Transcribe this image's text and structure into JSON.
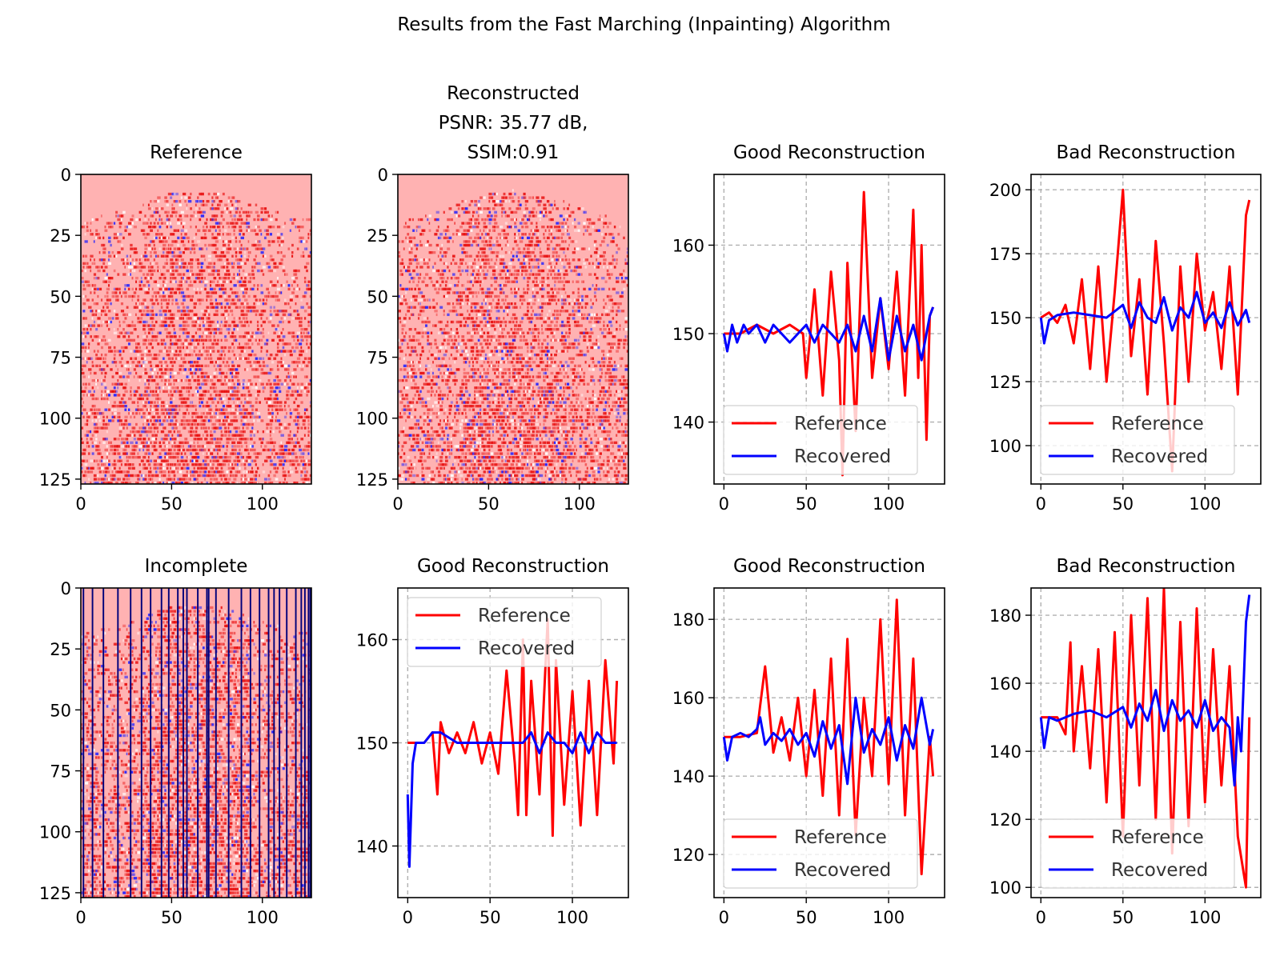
{
  "title": "Results from the Fast Marching (Inpainting) Algorithm",
  "colors": {
    "reference": "#ff0000",
    "recovered": "#0000ff",
    "image_base": "#ffb2b2",
    "mask_line": "#00007a"
  },
  "chart_data": [
    {
      "id": "p1",
      "type": "heatmap",
      "title": "Reference",
      "xlim": [
        0,
        127
      ],
      "ylim": [
        127,
        0
      ],
      "xticks": [
        0,
        50,
        100
      ],
      "yticks": [
        0,
        25,
        50,
        75,
        100,
        125
      ]
    },
    {
      "id": "p2",
      "type": "heatmap",
      "title": "Reconstructed\nPSNR: 35.77 dB,\nSSIM:0.91",
      "xlim": [
        0,
        127
      ],
      "ylim": [
        127,
        0
      ],
      "xticks": [
        0,
        50,
        100
      ],
      "yticks": [
        0,
        25,
        50,
        75,
        100,
        125
      ]
    },
    {
      "id": "p3",
      "type": "line",
      "title": "Good Reconstruction",
      "xlim": [
        -6,
        134
      ],
      "ylim": [
        133,
        168
      ],
      "xticks": [
        0,
        50,
        100
      ],
      "yticks": [
        140,
        150,
        160
      ],
      "grid": true,
      "legend": "lower-left",
      "series": [
        {
          "name": "Reference",
          "color": "#ff0000",
          "x": [
            0,
            10,
            20,
            30,
            40,
            48,
            50,
            55,
            60,
            65,
            70,
            72,
            75,
            80,
            85,
            90,
            95,
            100,
            105,
            110,
            115,
            118,
            120,
            123,
            125,
            127
          ],
          "y": [
            150,
            150,
            151,
            150,
            151,
            150,
            145,
            155,
            143,
            157,
            147,
            134,
            158,
            139,
            166,
            145,
            154,
            146,
            157,
            143,
            164,
            145,
            160,
            138,
            152,
            153
          ]
        },
        {
          "name": "Recovered",
          "color": "#0000ff",
          "x": [
            0,
            2,
            5,
            8,
            12,
            15,
            20,
            25,
            30,
            35,
            40,
            45,
            50,
            55,
            60,
            65,
            70,
            75,
            80,
            85,
            90,
            95,
            100,
            105,
            110,
            115,
            120,
            125,
            127
          ],
          "y": [
            150,
            148,
            151,
            149,
            151,
            150,
            151,
            149,
            151,
            150,
            149,
            150,
            151,
            149,
            151,
            150,
            149,
            151,
            148,
            152,
            148,
            154,
            147,
            152,
            148,
            151,
            147,
            152,
            153
          ]
        }
      ]
    },
    {
      "id": "p4",
      "type": "line",
      "title": "Bad Reconstruction",
      "xlim": [
        -6,
        134
      ],
      "ylim": [
        85,
        206
      ],
      "xticks": [
        0,
        50,
        100
      ],
      "yticks": [
        100,
        125,
        150,
        175,
        200
      ],
      "grid": true,
      "legend": "lower-left",
      "series": [
        {
          "name": "Reference",
          "color": "#ff0000",
          "x": [
            0,
            5,
            10,
            15,
            20,
            25,
            30,
            35,
            40,
            45,
            50,
            55,
            60,
            65,
            70,
            75,
            80,
            85,
            90,
            95,
            100,
            105,
            110,
            115,
            120,
            125,
            127
          ],
          "y": [
            150,
            152,
            148,
            155,
            140,
            165,
            130,
            170,
            125,
            160,
            200,
            135,
            165,
            120,
            180,
            140,
            90,
            170,
            125,
            175,
            145,
            160,
            130,
            170,
            120,
            190,
            196
          ]
        },
        {
          "name": "Recovered",
          "color": "#0000ff",
          "x": [
            0,
            2,
            5,
            10,
            20,
            30,
            40,
            50,
            55,
            60,
            65,
            70,
            75,
            80,
            85,
            90,
            95,
            100,
            105,
            110,
            115,
            120,
            125,
            127
          ],
          "y": [
            150,
            140,
            149,
            151,
            152,
            151,
            150,
            155,
            146,
            156,
            150,
            148,
            158,
            145,
            154,
            150,
            160,
            148,
            152,
            146,
            156,
            147,
            153,
            148
          ]
        }
      ]
    },
    {
      "id": "p5",
      "type": "heatmap",
      "title": "Incomplete",
      "xlim": [
        0,
        127
      ],
      "ylim": [
        127,
        0
      ],
      "xticks": [
        0,
        50,
        100
      ],
      "yticks": [
        0,
        25,
        50,
        75,
        100,
        125
      ]
    },
    {
      "id": "p6",
      "type": "line",
      "title": "Good Reconstruction",
      "xlim": [
        -6,
        134
      ],
      "ylim": [
        135,
        165
      ],
      "xticks": [
        0,
        50,
        100
      ],
      "yticks": [
        140,
        150,
        160
      ],
      "grid": true,
      "legend": "upper-left",
      "series": [
        {
          "name": "Reference",
          "color": "#ff0000",
          "x": [
            0,
            10,
            15,
            18,
            20,
            25,
            30,
            35,
            40,
            45,
            50,
            55,
            60,
            65,
            67,
            70,
            72,
            75,
            80,
            85,
            88,
            90,
            95,
            100,
            105,
            110,
            115,
            120,
            125,
            127
          ],
          "y": [
            150,
            150,
            151,
            145,
            152,
            149,
            151,
            149,
            152,
            148,
            151,
            147,
            157,
            148,
            143,
            160,
            143,
            156,
            145,
            162,
            141,
            158,
            144,
            155,
            142,
            156,
            143,
            158,
            148,
            156
          ]
        },
        {
          "name": "Recovered",
          "color": "#0000ff",
          "x": [
            0,
            1,
            3,
            5,
            8,
            10,
            15,
            20,
            30,
            40,
            50,
            60,
            70,
            75,
            80,
            85,
            90,
            95,
            100,
            105,
            110,
            115,
            120,
            125,
            127
          ],
          "y": [
            145,
            138,
            148,
            150,
            150,
            150,
            151,
            151,
            150,
            150,
            150,
            150,
            150,
            151,
            149,
            151,
            150,
            150,
            149,
            151,
            149,
            151,
            150,
            150,
            150
          ]
        }
      ]
    },
    {
      "id": "p7",
      "type": "line",
      "title": "Good Reconstruction",
      "xlim": [
        -6,
        134
      ],
      "ylim": [
        109,
        188
      ],
      "xticks": [
        0,
        50,
        100
      ],
      "yticks": [
        120,
        140,
        160,
        180
      ],
      "grid": true,
      "legend": "lower-left",
      "series": [
        {
          "name": "Reference",
          "color": "#ff0000",
          "x": [
            0,
            10,
            20,
            22,
            25,
            30,
            35,
            40,
            45,
            50,
            55,
            60,
            65,
            70,
            75,
            80,
            85,
            90,
            95,
            100,
            105,
            110,
            115,
            120,
            125,
            127
          ],
          "y": [
            150,
            150,
            151,
            158,
            168,
            146,
            155,
            144,
            160,
            140,
            162,
            135,
            170,
            130,
            175,
            125,
            160,
            140,
            180,
            138,
            185,
            130,
            170,
            115,
            150,
            140
          ]
        },
        {
          "name": "Recovered",
          "color": "#0000ff",
          "x": [
            0,
            2,
            5,
            10,
            15,
            20,
            22,
            25,
            30,
            35,
            40,
            45,
            50,
            55,
            60,
            65,
            70,
            75,
            80,
            85,
            90,
            95,
            100,
            105,
            110,
            115,
            120,
            125,
            127
          ],
          "y": [
            150,
            144,
            150,
            151,
            150,
            152,
            155,
            148,
            151,
            149,
            152,
            148,
            151,
            145,
            154,
            147,
            153,
            138,
            160,
            146,
            152,
            148,
            155,
            144,
            153,
            147,
            160,
            148,
            152
          ]
        }
      ]
    },
    {
      "id": "p8",
      "type": "line",
      "title": "Bad Reconstruction",
      "xlim": [
        -6,
        134
      ],
      "ylim": [
        97,
        188
      ],
      "xticks": [
        0,
        50,
        100
      ],
      "yticks": [
        100,
        120,
        140,
        160,
        180
      ],
      "grid": true,
      "legend": "lower-left",
      "series": [
        {
          "name": "Reference",
          "color": "#ff0000",
          "x": [
            0,
            10,
            15,
            18,
            20,
            25,
            30,
            35,
            40,
            45,
            50,
            55,
            60,
            65,
            70,
            75,
            80,
            85,
            90,
            95,
            100,
            105,
            110,
            115,
            120,
            125,
            127
          ],
          "y": [
            150,
            150,
            145,
            172,
            140,
            165,
            135,
            170,
            125,
            175,
            115,
            180,
            130,
            185,
            120,
            188,
            110,
            178,
            118,
            182,
            125,
            170,
            130,
            165,
            115,
            100,
            150
          ]
        },
        {
          "name": "Recovered",
          "color": "#0000ff",
          "x": [
            0,
            2,
            5,
            10,
            20,
            30,
            40,
            50,
            55,
            60,
            65,
            70,
            75,
            80,
            85,
            90,
            95,
            100,
            105,
            110,
            115,
            118,
            120,
            122,
            125,
            127
          ],
          "y": [
            150,
            141,
            150,
            149,
            151,
            152,
            150,
            153,
            147,
            154,
            149,
            158,
            146,
            155,
            149,
            152,
            147,
            155,
            146,
            150,
            147,
            130,
            150,
            140,
            178,
            186
          ]
        }
      ]
    }
  ]
}
